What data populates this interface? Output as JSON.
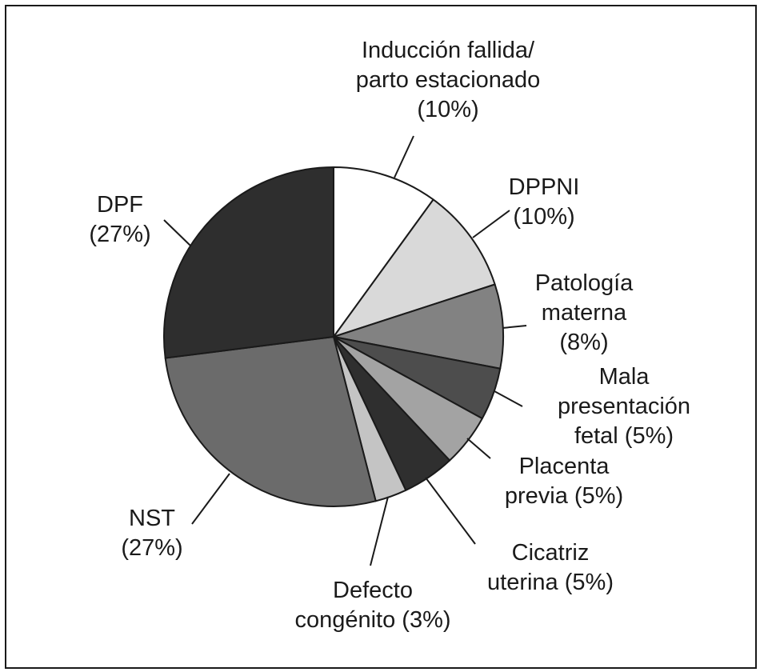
{
  "chart_data": {
    "type": "pie",
    "title": "",
    "slices": [
      {
        "lines": [
          "Inducción fallida/",
          "parto estacionado",
          "(10%)"
        ],
        "value": 10,
        "color": "#ffffff"
      },
      {
        "lines": [
          "DPPNI",
          "(10%)"
        ],
        "value": 10,
        "color": "#d9d9d9"
      },
      {
        "lines": [
          "Patología",
          "materna",
          "(8%)"
        ],
        "value": 8,
        "color": "#828282"
      },
      {
        "lines": [
          "Mala",
          "presentación",
          "fetal (5%)"
        ],
        "value": 5,
        "color": "#4d4d4d"
      },
      {
        "lines": [
          "Placenta",
          "previa (5%)"
        ],
        "value": 5,
        "color": "#a3a3a3"
      },
      {
        "lines": [
          "Cicatriz",
          "uterina (5%)"
        ],
        "value": 5,
        "color": "#2f2f2f"
      },
      {
        "lines": [
          "Defecto",
          "congénito (3%)"
        ],
        "value": 3,
        "color": "#c4c4c4"
      },
      {
        "lines": [
          "NST",
          "(27%)"
        ],
        "value": 27,
        "color": "#6b6b6b"
      },
      {
        "lines": [
          "DPF",
          "(27%)"
        ],
        "value": 27,
        "color": "#2e2e2e"
      }
    ]
  }
}
